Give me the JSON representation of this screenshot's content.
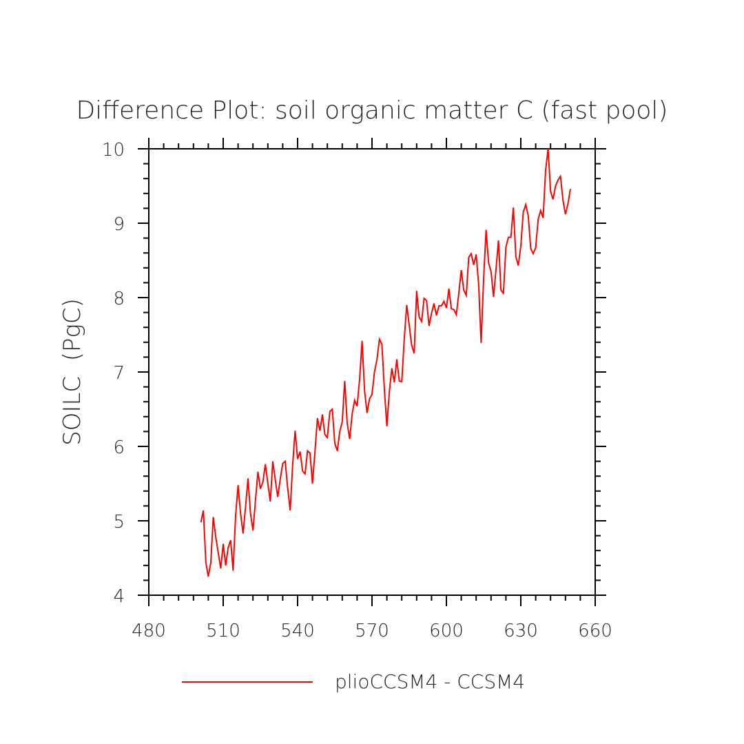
{
  "chart_data": {
    "type": "line",
    "title": "Difference Plot: soil organic matter C (fast pool)",
    "xlabel": "",
    "ylabel": "SOILC  (PgC)",
    "xlim": [
      480,
      660
    ],
    "ylim": [
      4,
      10
    ],
    "x_ticks": [
      "480",
      "510",
      "540",
      "570",
      "600",
      "630",
      "660"
    ],
    "y_ticks": [
      "4",
      "5",
      "6",
      "7",
      "8",
      "9",
      "10"
    ],
    "x_tick_values": [
      480,
      510,
      540,
      570,
      600,
      630,
      660
    ],
    "y_tick_values": [
      4,
      5,
      6,
      7,
      8,
      9,
      10
    ],
    "legend_position": "bottom-center",
    "series": [
      {
        "name": "plioCCSM4 - CCSM4",
        "color": "#ff0000",
        "x_start": 501,
        "x_step": 1,
        "values": [
          4.98,
          5.14,
          4.44,
          4.25,
          4.44,
          5.05,
          4.78,
          4.57,
          4.36,
          4.69,
          4.4,
          4.64,
          4.74,
          4.33,
          5.07,
          5.48,
          5.1,
          4.83,
          5.18,
          5.57,
          5.1,
          4.87,
          5.27,
          5.66,
          5.43,
          5.52,
          5.76,
          5.5,
          5.26,
          5.8,
          5.55,
          5.32,
          5.56,
          5.77,
          5.8,
          5.44,
          5.14,
          5.75,
          6.21,
          5.83,
          5.93,
          5.67,
          5.63,
          5.94,
          5.91,
          5.5,
          5.93,
          6.38,
          6.21,
          6.43,
          6.16,
          6.12,
          6.47,
          6.5,
          6.04,
          5.94,
          6.2,
          6.33,
          6.88,
          6.31,
          6.1,
          6.44,
          6.62,
          6.54,
          6.9,
          7.42,
          6.75,
          6.45,
          6.64,
          6.7,
          7.0,
          7.17,
          7.44,
          7.37,
          6.76,
          6.27,
          6.74,
          7.05,
          6.86,
          7.17,
          6.88,
          6.87,
          7.44,
          7.9,
          7.63,
          7.36,
          7.25,
          8.09,
          7.74,
          7.68,
          7.99,
          7.96,
          7.62,
          7.79,
          7.92,
          7.76,
          7.89,
          7.89,
          7.95,
          7.86,
          8.12,
          7.85,
          7.84,
          7.77,
          8.06,
          8.37,
          8.1,
          8.03,
          8.54,
          8.59,
          8.44,
          8.58,
          8.18,
          7.39,
          8.25,
          8.91,
          8.47,
          8.35,
          8.01,
          8.38,
          8.77,
          8.1,
          8.06,
          8.68,
          8.81,
          8.81,
          9.21,
          8.55,
          8.43,
          8.69,
          9.15,
          9.25,
          9.1,
          8.66,
          8.59,
          8.67,
          9.05,
          9.17,
          9.07,
          9.71,
          10.0,
          9.43,
          9.32,
          9.5,
          9.58,
          9.63,
          9.31,
          9.12,
          9.26,
          9.46
        ]
      }
    ]
  }
}
